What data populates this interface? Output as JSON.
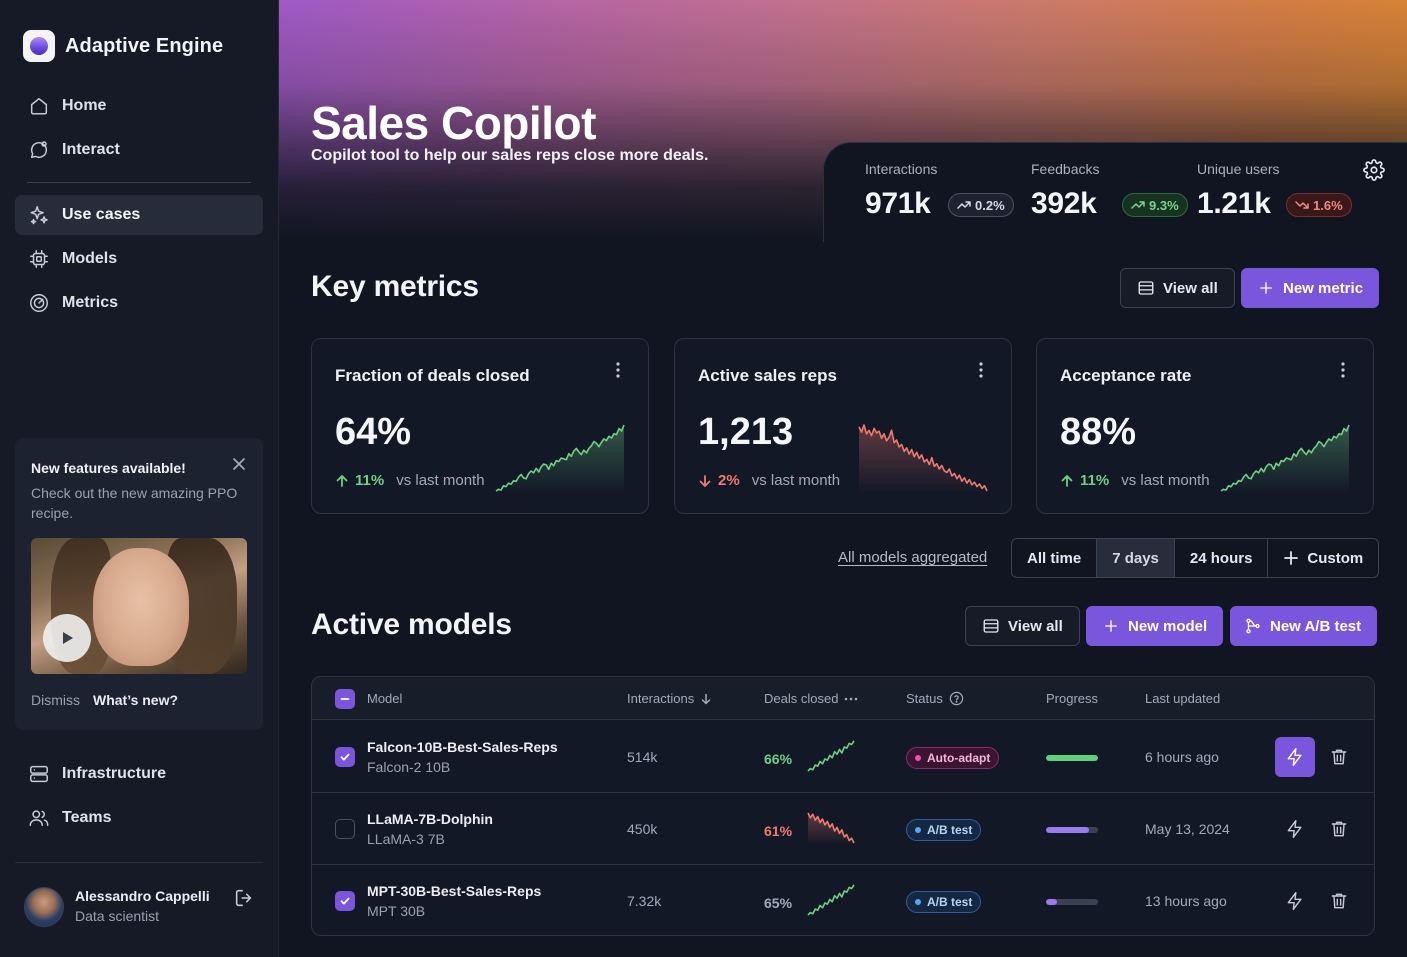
{
  "app": {
    "name": "Adaptive Engine"
  },
  "nav": {
    "home": "Home",
    "interact": "Interact",
    "use_cases": "Use cases",
    "models": "Models",
    "metrics": "Metrics",
    "infrastructure": "Infrastructure",
    "teams": "Teams"
  },
  "promo": {
    "title": "New features available!",
    "text": "Check out the new amazing PPO recipe.",
    "dismiss": "Dismiss",
    "whats_new": "What’s new?"
  },
  "user": {
    "name": "Alessandro Cappelli",
    "role": "Data scientist"
  },
  "page": {
    "title": "Sales Copilot",
    "subtitle": "Copilot tool to help our sales reps close more deals."
  },
  "stats": {
    "interactions": {
      "label": "Interactions",
      "value": "971k",
      "delta": "0.2%"
    },
    "feedbacks": {
      "label": "Feedbacks",
      "value": "392k",
      "delta": "9.3%"
    },
    "unique_users": {
      "label": "Unique users",
      "value": "1.21k",
      "delta": "1.6%"
    }
  },
  "key_metrics": {
    "title": "Key metrics",
    "view_all": "View all",
    "new_metric": "New metric",
    "cards": [
      {
        "title": "Fraction of deals closed",
        "value": "64%",
        "delta": "11%",
        "vs": "vs last month",
        "trend": "up",
        "spark": [
          3,
          5,
          4,
          9,
          8,
          12,
          11,
          15,
          14,
          19,
          22,
          18,
          17,
          23,
          26,
          24,
          29,
          25,
          31,
          34,
          33,
          28,
          35,
          32,
          38,
          37,
          41,
          40,
          39,
          46,
          43,
          49,
          52,
          48,
          45,
          50,
          47,
          52,
          55,
          60,
          58,
          54,
          59,
          63,
          61,
          66,
          64,
          69,
          68,
          75,
          72,
          79
        ]
      },
      {
        "title": "Active sales reps",
        "value": "1,213",
        "delta": "2%",
        "vs": "vs last month",
        "trend": "down",
        "spark": [
          78,
          72,
          80,
          70,
          74,
          68,
          76,
          71,
          73,
          65,
          70,
          62,
          66,
          74,
          60,
          63,
          55,
          58,
          50,
          54,
          47,
          52,
          44,
          49,
          42,
          46,
          38,
          41,
          35,
          43,
          33,
          36,
          30,
          34,
          28,
          26,
          30,
          22,
          25,
          19,
          23,
          16,
          20,
          14,
          18,
          12,
          15,
          10,
          13,
          8,
          11,
          5
        ]
      },
      {
        "title": "Acceptance rate",
        "value": "88%",
        "delta": "11%",
        "vs": "vs last month",
        "trend": "up",
        "spark": [
          3,
          5,
          4,
          9,
          8,
          12,
          11,
          15,
          14,
          19,
          22,
          18,
          17,
          23,
          26,
          24,
          29,
          25,
          31,
          34,
          33,
          28,
          35,
          32,
          38,
          37,
          41,
          40,
          39,
          46,
          43,
          49,
          52,
          48,
          45,
          50,
          47,
          52,
          55,
          60,
          58,
          54,
          59,
          63,
          61,
          66,
          64,
          69,
          68,
          75,
          72,
          79
        ]
      }
    ]
  },
  "filters": {
    "aggregate_link": "All models aggregated",
    "ranges": [
      "All time",
      "7 days",
      "24 hours"
    ],
    "selected": "7 days",
    "custom": "Custom"
  },
  "active_models": {
    "title": "Active models",
    "view_all": "View all",
    "new_model": "New model",
    "new_ab": "New A/B test",
    "columns": {
      "model": "Model",
      "interactions": "Interactions",
      "deals": "Deals closed",
      "status": "Status",
      "progress": "Progress",
      "updated": "Last updated"
    },
    "rows": [
      {
        "name": "Falcon-10B-Best-Sales-Reps",
        "base": "Falcon-2 10B",
        "interactions": "514k",
        "deals": "66%",
        "trend": "up",
        "status": "Auto-adapt",
        "status_type": "auto",
        "progress": 1.0,
        "progress_color": "#5fd07c",
        "updated": "6 hours ago",
        "checked": true,
        "highlight": true
      },
      {
        "name": "LLaMA-7B-Dolphin",
        "base": "LLaMA-3 7B",
        "interactions": "450k",
        "deals": "61%",
        "trend": "down",
        "status": "A/B test",
        "status_type": "ab",
        "progress": 0.82,
        "progress_color": "#9a7bf0",
        "updated": "May 13, 2024",
        "checked": false,
        "highlight": false
      },
      {
        "name": "MPT-30B-Best-Sales-Reps",
        "base": "MPT 30B",
        "interactions": "7.32k",
        "deals": "65%",
        "trend": "up",
        "status": "A/B test",
        "status_type": "ab",
        "progress": 0.22,
        "progress_color": "#9a7bf0",
        "updated": "13 hours ago",
        "checked": true,
        "highlight": false
      }
    ]
  },
  "colors": {
    "accent": "#7a56dc",
    "up": "#6fd085",
    "down": "#ef7a70"
  }
}
